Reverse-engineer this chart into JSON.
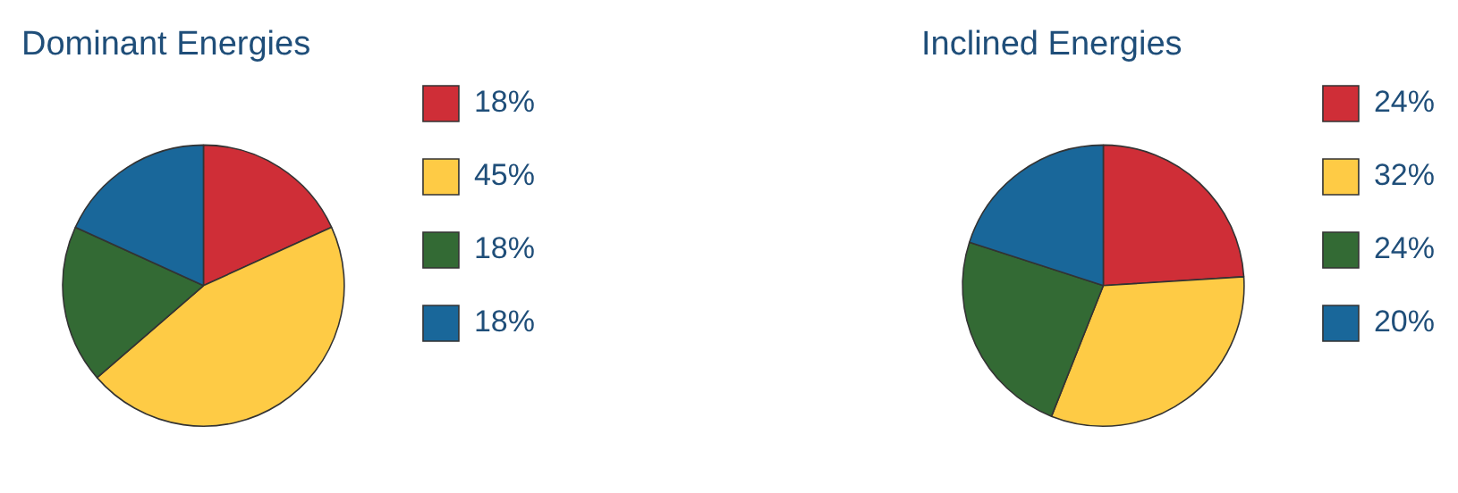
{
  "chart_data": [
    {
      "type": "pie",
      "title": "Dominant Energies",
      "categories": [
        "18%",
        "45%",
        "18%",
        "18%"
      ],
      "values": [
        18,
        45,
        18,
        18
      ],
      "colors": [
        "#cf2e37",
        "#fecb45",
        "#336a34",
        "#19679a"
      ],
      "legend": "right"
    },
    {
      "type": "pie",
      "title": "Inclined Energies",
      "categories": [
        "24%",
        "32%",
        "24%",
        "20%"
      ],
      "values": [
        24,
        32,
        24,
        20
      ],
      "colors": [
        "#cf2e37",
        "#fecb45",
        "#336a34",
        "#19679a"
      ],
      "legend": "right"
    }
  ]
}
